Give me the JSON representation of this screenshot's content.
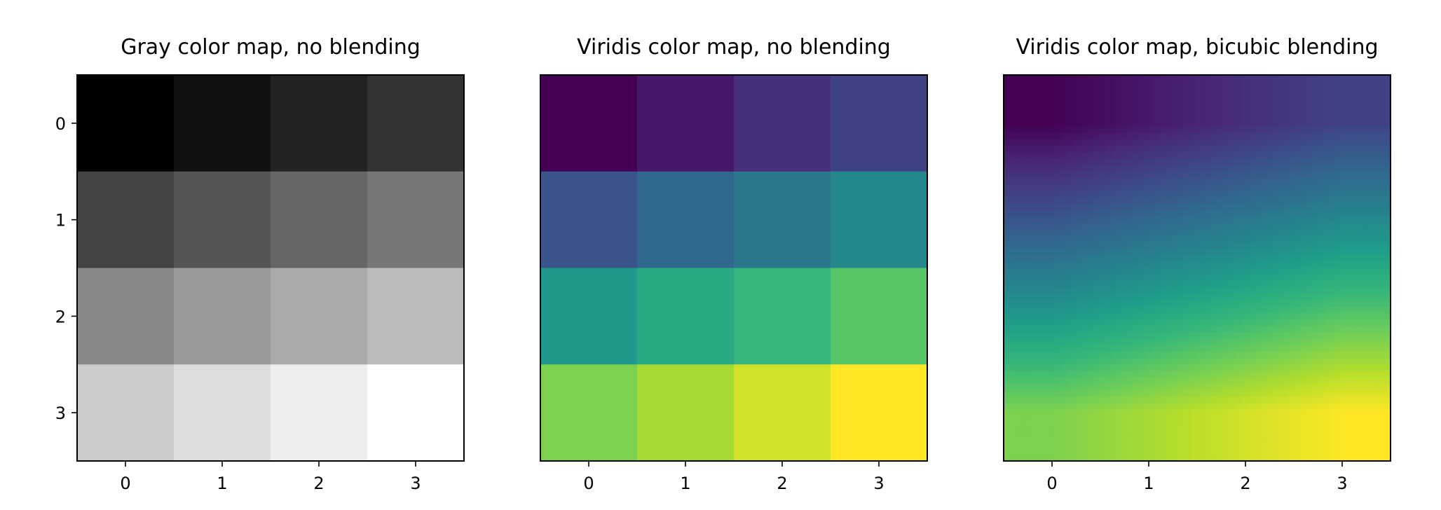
{
  "chart_data": [
    {
      "type": "heatmap",
      "title": "Gray color map, no blending",
      "colormap": "gray",
      "interpolation": "none",
      "values": [
        [
          0,
          1,
          2,
          3
        ],
        [
          4,
          5,
          6,
          7
        ],
        [
          8,
          9,
          10,
          11
        ],
        [
          12,
          13,
          14,
          15
        ]
      ],
      "vmin": 0,
      "vmax": 15,
      "x_ticks": [
        "0",
        "1",
        "2",
        "3"
      ],
      "y_ticks": [
        "0",
        "1",
        "2",
        "3"
      ],
      "show_y_ticks": true
    },
    {
      "type": "heatmap",
      "title": "Viridis color map, no blending",
      "colormap": "viridis",
      "interpolation": "none",
      "values": [
        [
          0,
          1,
          2,
          3
        ],
        [
          4,
          5,
          6,
          7
        ],
        [
          8,
          9,
          10,
          11
        ],
        [
          12,
          13,
          14,
          15
        ]
      ],
      "vmin": 0,
      "vmax": 15,
      "x_ticks": [
        "0",
        "1",
        "2",
        "3"
      ],
      "y_ticks": [],
      "show_y_ticks": false
    },
    {
      "type": "heatmap",
      "title": "Viridis color map, bicubic blending",
      "colormap": "viridis",
      "interpolation": "bicubic",
      "values": [
        [
          0,
          1,
          2,
          3
        ],
        [
          4,
          5,
          6,
          7
        ],
        [
          8,
          9,
          10,
          11
        ],
        [
          12,
          13,
          14,
          15
        ]
      ],
      "vmin": 0,
      "vmax": 15,
      "x_ticks": [
        "0",
        "1",
        "2",
        "3"
      ],
      "y_ticks": [],
      "show_y_ticks": false
    }
  ],
  "colors": {
    "viridis_stops": [
      "#440154",
      "#482878",
      "#3e4989",
      "#31688e",
      "#26828e",
      "#1f9e89",
      "#35b779",
      "#6ece58",
      "#b5de2b",
      "#fde725"
    ]
  }
}
